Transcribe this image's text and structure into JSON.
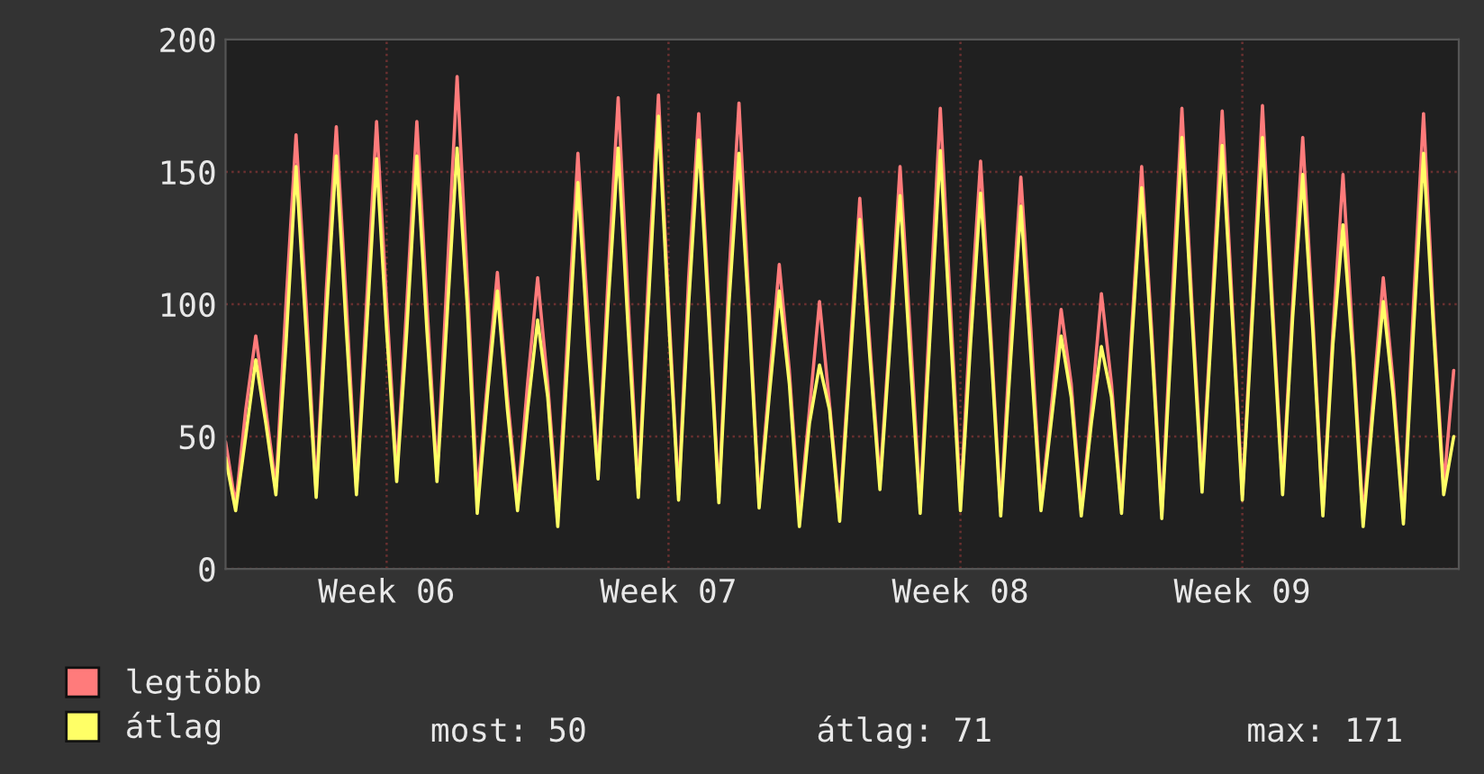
{
  "chart_data": {
    "type": "line",
    "categories": [
      null,
      null,
      null,
      null,
      null,
      null,
      null,
      null,
      null,
      null,
      null,
      null,
      null,
      null,
      null,
      null,
      "Week 06",
      null,
      null,
      null,
      null,
      null,
      null,
      null,
      null,
      null,
      null,
      null,
      null,
      null,
      null,
      null,
      null,
      null,
      null,
      null,
      null,
      null,
      null,
      null,
      null,
      null,
      null,
      null,
      "Week 07",
      null,
      null,
      null,
      null,
      null,
      null,
      null,
      null,
      null,
      null,
      null,
      null,
      null,
      null,
      null,
      null,
      null,
      null,
      null,
      null,
      null,
      null,
      null,
      null,
      null,
      null,
      null,
      null,
      "Week 08",
      null,
      null,
      null,
      null,
      null,
      null,
      null,
      null,
      null,
      null,
      null,
      null,
      null,
      null,
      null,
      null,
      null,
      null,
      null,
      null,
      null,
      null,
      null,
      null,
      null,
      null,
      null,
      "Week 09",
      null,
      null,
      null,
      null,
      null,
      null,
      null,
      null,
      null,
      null,
      null,
      null,
      null,
      null,
      null,
      null,
      null,
      null,
      null,
      null,
      null
    ],
    "series": [
      {
        "name": "legtöbb",
        "color": "#ff7b7b",
        "values": [
          48,
          24,
          60,
          88,
          60,
          31,
          100,
          164,
          100,
          29,
          105,
          167,
          100,
          30,
          100,
          169,
          100,
          36,
          100,
          169,
          100,
          35,
          110,
          186,
          110,
          27,
          70,
          112,
          65,
          25,
          70,
          110,
          70,
          20,
          90,
          157,
          95,
          36,
          110,
          178,
          100,
          29,
          110,
          179,
          100,
          28,
          110,
          172,
          100,
          27,
          110,
          176,
          100,
          25,
          70,
          115,
          75,
          20,
          60,
          101,
          62,
          21,
          80,
          140,
          85,
          33,
          90,
          152,
          90,
          24,
          100,
          174,
          100,
          25,
          95,
          154,
          90,
          22,
          90,
          148,
          90,
          24,
          60,
          98,
          70,
          22,
          60,
          104,
          70,
          23,
          90,
          152,
          90,
          21,
          100,
          174,
          100,
          33,
          100,
          173,
          100,
          28,
          100,
          175,
          100,
          31,
          100,
          163,
          95,
          22,
          90,
          149,
          85,
          19,
          65,
          110,
          70,
          19,
          100,
          172,
          95,
          31,
          75
        ]
      },
      {
        "name": "átlag",
        "color": "#ffff66",
        "values": [
          42,
          22,
          50,
          79,
          55,
          28,
          85,
          152,
          90,
          27,
          95,
          156,
          90,
          28,
          90,
          155,
          90,
          33,
          90,
          156,
          90,
          33,
          95,
          159,
          100,
          21,
          65,
          105,
          60,
          22,
          60,
          94,
          65,
          16,
          80,
          146,
          85,
          34,
          100,
          159,
          90,
          27,
          100,
          171,
          95,
          26,
          100,
          162,
          95,
          25,
          100,
          157,
          95,
          23,
          65,
          105,
          70,
          16,
          55,
          77,
          60,
          18,
          75,
          132,
          80,
          30,
          85,
          141,
          80,
          21,
          90,
          158,
          90,
          22,
          85,
          142,
          85,
          20,
          80,
          137,
          80,
          22,
          55,
          88,
          65,
          20,
          55,
          84,
          65,
          21,
          85,
          144,
          85,
          19,
          90,
          163,
          95,
          29,
          95,
          160,
          95,
          26,
          95,
          163,
          95,
          28,
          95,
          149,
          90,
          20,
          85,
          130,
          80,
          16,
          60,
          101,
          65,
          17,
          90,
          157,
          90,
          28,
          50
        ]
      }
    ],
    "ylim": [
      0,
      200
    ],
    "yticks": [
      0,
      50,
      100,
      150,
      200
    ],
    "grid": true,
    "legend": "bottom left",
    "line_style": "solid",
    "marker": "none",
    "annotations": [
      "most: 50",
      "átlag: 71",
      "max: 171"
    ]
  }
}
